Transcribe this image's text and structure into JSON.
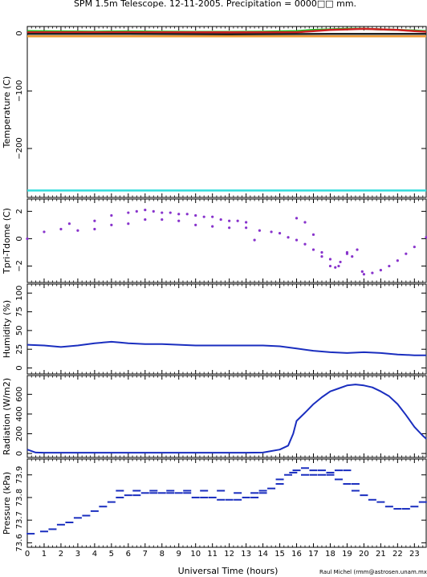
{
  "header": {
    "title": "SPM 1.5m Telescope. 12-11-2005. Precipitation = 0000□□ mm."
  },
  "footer": {
    "xlabel": "Universal Time (hours)",
    "credit": "Raul Michel (rmm@astrosen.unam.mx)"
  },
  "x_ticks": [
    "0",
    "1",
    "2",
    "3",
    "4",
    "5",
    "6",
    "7",
    "8",
    "9",
    "10",
    "11",
    "12",
    "13",
    "14",
    "15",
    "16",
    "17",
    "18",
    "19",
    "20",
    "21",
    "22",
    "23"
  ],
  "colors": {
    "green": "#22bb22",
    "red": "#cc2222",
    "dark": "#222222",
    "orange": "#ee9933",
    "cyan": "#33dddd",
    "purple": "#8833cc",
    "blue": "#1a2ebf"
  },
  "chart_data": [
    {
      "type": "line",
      "ylabel": "Temperature (C)",
      "xlim": [
        0,
        23.7
      ],
      "ylim": [
        -285,
        12
      ],
      "yticks": [
        0,
        -100,
        -200
      ],
      "ytick_labels": [
        "0",
        "−100",
        "−200"
      ],
      "series": [
        {
          "color": "#22bb22",
          "x": [
            0,
            2,
            4,
            6,
            8,
            10,
            12,
            14,
            16,
            17,
            18,
            19,
            20,
            21,
            22,
            23,
            23.7
          ],
          "y": [
            4,
            3.5,
            3,
            3.5,
            3,
            2.5,
            2.5,
            3,
            4,
            6,
            7,
            8,
            8,
            7,
            6,
            5,
            4
          ]
        },
        {
          "color": "#cc2222",
          "x": [
            0,
            16,
            17,
            18,
            19,
            20,
            21,
            22,
            23,
            23.7
          ],
          "y": [
            2,
            2,
            4,
            6,
            7,
            8,
            7,
            6,
            4,
            3
          ]
        },
        {
          "color": "#222222",
          "x": [
            0,
            6,
            12,
            18,
            23.7
          ],
          "y": [
            -1,
            -1,
            -1.5,
            -1,
            -1
          ]
        },
        {
          "color": "#ee9933",
          "x": [
            0,
            6,
            12,
            18,
            23.7
          ],
          "y": [
            -5,
            -5,
            -5,
            -5,
            -5
          ]
        },
        {
          "color": "#33dddd",
          "x": [
            0,
            6,
            12,
            18,
            23.7
          ],
          "y": [
            -273,
            -273,
            -273,
            -273,
            -273
          ]
        }
      ]
    },
    {
      "type": "scatter",
      "ylabel": "Tpri-Tdome (C)",
      "xlim": [
        0,
        23.7
      ],
      "ylim": [
        -3.2,
        2.9
      ],
      "yticks": [
        2,
        0,
        -2
      ],
      "ytick_labels": [
        "2",
        "0",
        "−2"
      ],
      "series": [
        {
          "color": "#8833cc",
          "x": [
            0,
            1,
            2,
            3,
            4,
            5,
            6,
            7,
            8,
            9,
            10,
            11,
            12,
            13,
            13.8,
            14.5,
            15,
            15.5,
            16,
            16.5,
            17,
            17.5,
            18,
            18.3,
            18.6,
            19,
            19.3,
            19.6,
            19.9,
            20,
            20.5,
            21,
            21.5,
            22,
            22.5,
            23,
            23.7
          ],
          "y": [
            0,
            0.5,
            0.7,
            0.6,
            0.7,
            1.0,
            1.1,
            1.4,
            1.4,
            1.3,
            1.0,
            0.9,
            0.8,
            0.8,
            0.6,
            0.5,
            0.4,
            0.1,
            -0.1,
            -0.4,
            -0.8,
            -1.3,
            -2.0,
            -2.1,
            -1.7,
            -1.0,
            -1.3,
            -0.8,
            -2.4,
            -2.6,
            -2.5,
            -2.3,
            -2.0,
            -1.6,
            -1.1,
            -0.6,
            0.1
          ]
        },
        {
          "color": "#8833cc",
          "x": [
            2.5,
            4,
            5,
            6,
            6.5,
            7,
            7.5,
            8,
            8.5,
            9,
            9.5,
            10,
            10.5,
            11,
            11.5,
            12,
            12.5,
            13,
            13.5,
            16,
            16.5,
            17,
            17.5,
            18,
            18.5,
            19
          ],
          "y": [
            1.1,
            1.3,
            1.7,
            1.9,
            2.0,
            2.1,
            2.0,
            1.9,
            1.9,
            1.8,
            1.8,
            1.7,
            1.6,
            1.6,
            1.4,
            1.3,
            1.3,
            1.2,
            -0.1,
            1.5,
            1.2,
            0.3,
            -1.0,
            -1.5,
            -2.0,
            -1.1
          ]
        }
      ]
    },
    {
      "type": "line",
      "ylabel": "Humidity (%)",
      "xlim": [
        0,
        23.7
      ],
      "ylim": [
        -8,
        112
      ],
      "yticks": [
        0,
        25,
        50,
        75,
        100
      ],
      "ytick_labels": [
        "0",
        "25",
        "50",
        "75",
        "100"
      ],
      "series": [
        {
          "color": "#1a2ebf",
          "x": [
            0,
            1,
            2,
            3,
            4,
            5,
            5.5,
            6,
            7,
            8,
            9,
            10,
            11,
            12,
            13,
            14,
            15,
            16,
            17,
            18,
            19,
            20,
            21,
            22,
            23,
            23.7
          ],
          "y": [
            31,
            30,
            28,
            30,
            33,
            35,
            34,
            33,
            32,
            32,
            31,
            30,
            30,
            30,
            30,
            30,
            29,
            26,
            23,
            21,
            20,
            21,
            20,
            18,
            17,
            17
          ]
        }
      ]
    },
    {
      "type": "line",
      "ylabel": "Radiation (W/m2)",
      "xlim": [
        0,
        23.7
      ],
      "ylim": [
        -40,
        790
      ],
      "yticks": [
        0,
        200,
        400,
        600
      ],
      "ytick_labels": [
        "0",
        "200",
        "400",
        "600"
      ],
      "series": [
        {
          "color": "#1a2ebf",
          "x": [
            0,
            0.5,
            1,
            5,
            10,
            13,
            14,
            15,
            15.5,
            15.8,
            16,
            16.3,
            16.6,
            17,
            17.5,
            18,
            18.5,
            19,
            19.5,
            20,
            20.5,
            21,
            21.5,
            22,
            22.5,
            23,
            23.5,
            23.7
          ],
          "y": [
            40,
            10,
            8,
            8,
            8,
            8,
            10,
            40,
            80,
            200,
            330,
            380,
            430,
            500,
            570,
            630,
            660,
            690,
            700,
            690,
            670,
            630,
            580,
            500,
            390,
            270,
            180,
            150
          ]
        }
      ]
    },
    {
      "type": "scatter",
      "ylabel": "Pressure (kPa)",
      "xlim": [
        0,
        23.7
      ],
      "ylim": [
        73.58,
        73.97
      ],
      "yticks": [
        73.6,
        73.7,
        73.8,
        73.9
      ],
      "ytick_labels": [
        "73.6",
        "73.7",
        "73.8",
        "73.9"
      ],
      "series": [
        {
          "color": "#1a2ebf",
          "x": [
            0.2,
            1,
            1.5,
            2,
            2.5,
            3,
            3.5,
            4,
            4.5,
            5,
            5.5,
            6,
            6.5,
            7,
            7.5,
            8,
            8.5,
            9,
            9.5,
            10,
            10.5,
            11,
            11.5,
            12,
            12.5,
            13,
            13.5,
            14,
            14.5,
            15,
            15.5,
            16,
            16.5,
            17,
            17.5,
            18,
            18.5,
            19,
            19.5,
            20,
            20.5,
            21,
            21.5,
            22,
            22.5,
            23,
            23.5
          ],
          "y": [
            73.64,
            73.65,
            73.66,
            73.68,
            73.69,
            73.71,
            73.72,
            73.74,
            73.76,
            73.78,
            73.8,
            73.81,
            73.81,
            73.82,
            73.82,
            73.82,
            73.82,
            73.82,
            73.82,
            73.8,
            73.8,
            73.8,
            73.79,
            73.79,
            73.79,
            73.8,
            73.8,
            73.82,
            73.84,
            73.86,
            73.9,
            73.92,
            73.9,
            73.9,
            73.9,
            73.9,
            73.88,
            73.86,
            73.83,
            73.81,
            73.79,
            73.78,
            73.76,
            73.75,
            73.75,
            73.76,
            73.78
          ]
        },
        {
          "color": "#1a2ebf",
          "x": [
            5.5,
            6.5,
            7.5,
            8.5,
            9.5,
            10.5,
            11.5,
            12.5,
            13.5,
            14,
            15,
            15.8,
            16.5,
            17,
            17.5,
            18,
            18.5,
            19,
            19.5
          ],
          "y": [
            73.83,
            73.83,
            73.83,
            73.83,
            73.83,
            73.83,
            73.83,
            73.82,
            73.82,
            73.83,
            73.88,
            73.91,
            73.93,
            73.92,
            73.92,
            73.91,
            73.92,
            73.92,
            73.86
          ]
        }
      ]
    }
  ]
}
